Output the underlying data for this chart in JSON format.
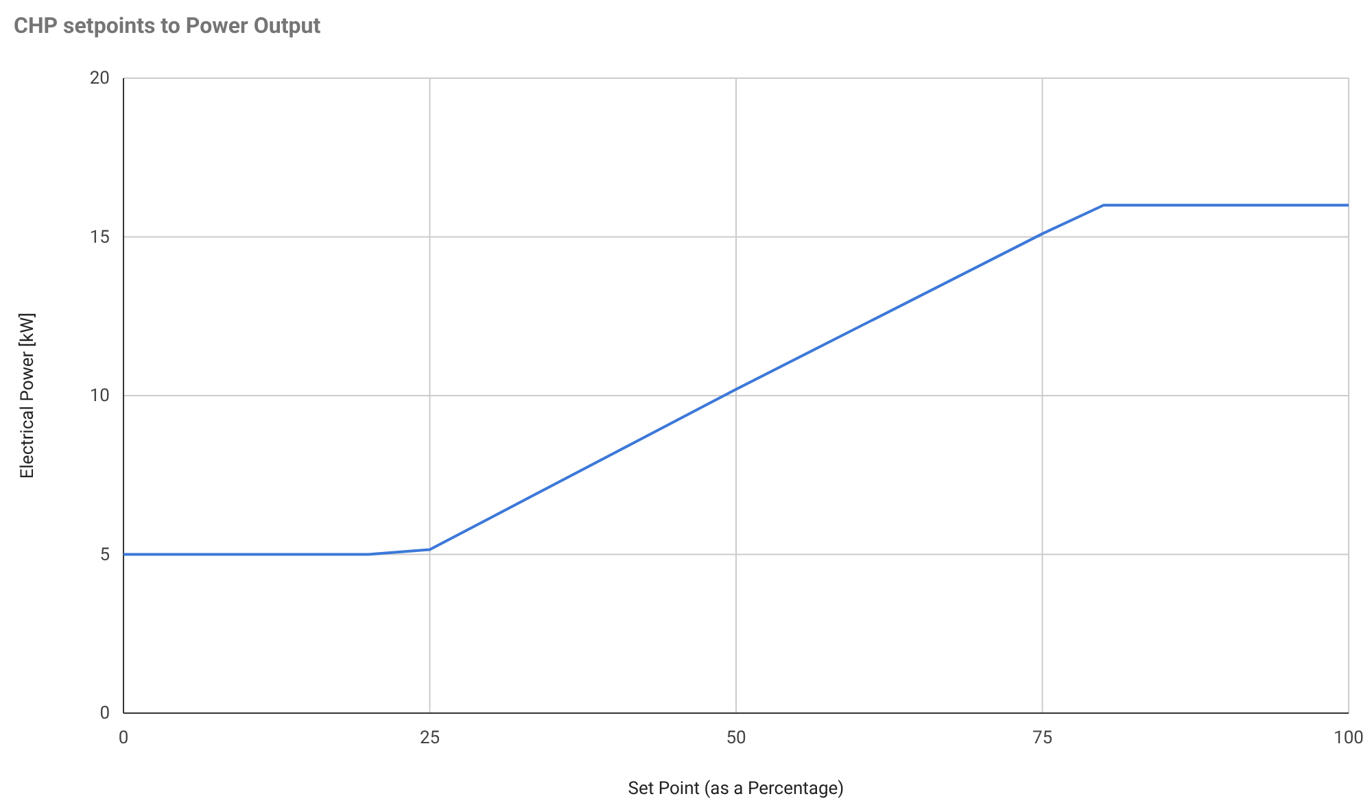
{
  "chart_data": {
    "type": "line",
    "title": "CHP setpoints to Power Output",
    "xlabel": "Set Point (as a Percentage)",
    "ylabel": "Electrical Power [kW]",
    "x": [
      0,
      20,
      25,
      50,
      75,
      80,
      100
    ],
    "series": [
      {
        "color": "#3c78d8",
        "values": [
          5,
          5,
          5.15,
          10.2,
          15.1,
          16,
          16
        ]
      }
    ],
    "xlim": [
      0,
      100
    ],
    "xticks": [
      0,
      25,
      50,
      75,
      100
    ],
    "ylim": [
      0,
      20
    ],
    "yticks": [
      0,
      5,
      10,
      15,
      20
    ],
    "grid": true,
    "marker": "none",
    "line_style": "solid"
  }
}
